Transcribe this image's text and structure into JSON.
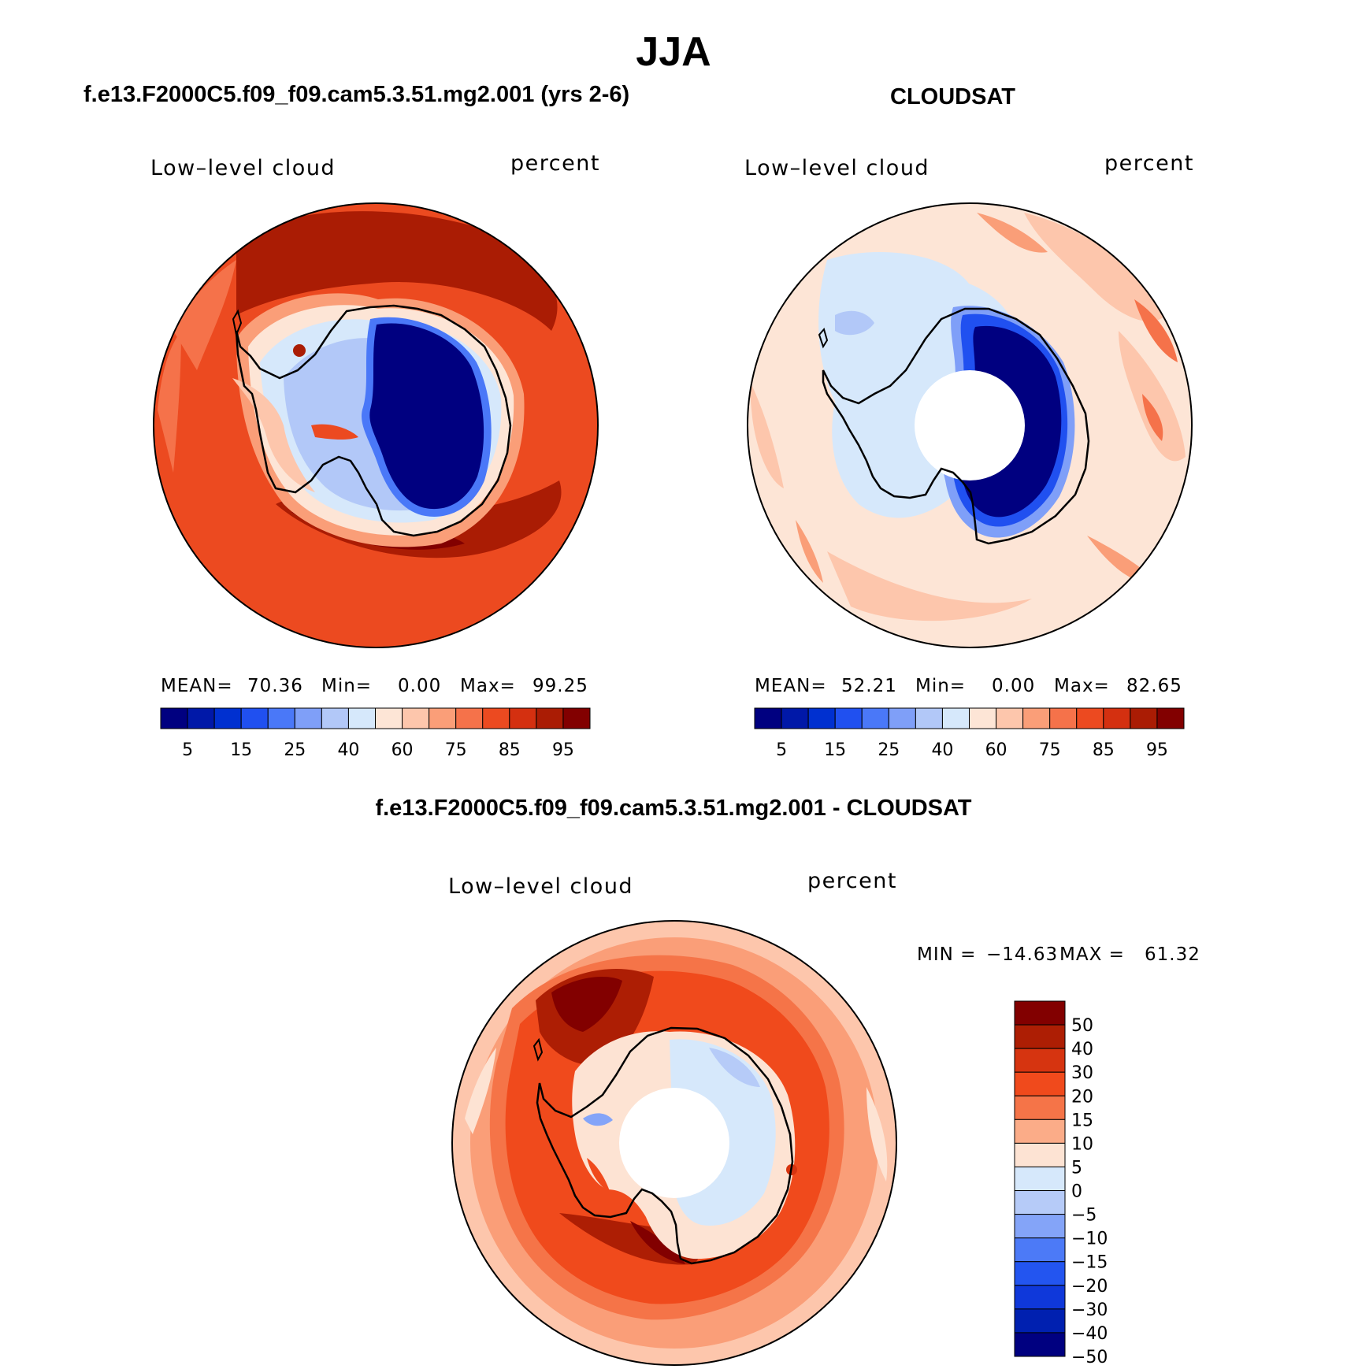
{
  "title": "JJA",
  "panels": [
    {
      "title": "f.e13.F2000C5.f09_f09.cam5.3.51.mg2.001 (yrs 2-6)",
      "variable": "Low–level cloud",
      "units": "percent",
      "stats": {
        "mean_label": "MEAN=",
        "mean": "70.36",
        "min_label": "Min=",
        "min": "0.00",
        "max_label": "Max=",
        "max": "99.25"
      }
    },
    {
      "title": "CLOUDSAT",
      "variable": "Low–level cloud",
      "units": "percent",
      "stats": {
        "mean_label": "MEAN=",
        "mean": "52.21",
        "min_label": "Min=",
        "min": "0.00",
        "max_label": "Max=",
        "max": "82.65"
      }
    }
  ],
  "abs_colorbar": {
    "colors": [
      "#000080",
      "#0018a8",
      "#0030d0",
      "#2050f0",
      "#4a78f8",
      "#7f9ff8",
      "#b2c8f8",
      "#d6e8fb",
      "#fde5d6",
      "#fdc6ac",
      "#fa9e78",
      "#f5724a",
      "#ec4a20",
      "#d43010",
      "#aa1c04",
      "#820000"
    ],
    "labels": [
      "5",
      "15",
      "25",
      "40",
      "60",
      "75",
      "85",
      "95"
    ]
  },
  "diff_panel": {
    "title": "f.e13.F2000C5.f09_f09.cam5.3.51.mg2.001 - CLOUDSAT",
    "variable": "Low–level cloud",
    "units": "percent",
    "minmax": {
      "min_label": "MIN =",
      "min": "−14.63",
      "max_label": "MAX =",
      "max": "61.32"
    },
    "colorbar": {
      "colors": [
        "#820000",
        "#ad1e04",
        "#d63410",
        "#f04a1c",
        "#f57448",
        "#fbac88",
        "#fde3d3",
        "#d6e8fb",
        "#b6cbf8",
        "#84a4f8",
        "#4c7af7",
        "#2355f0",
        "#0f38da",
        "#0020b0",
        "#000080"
      ],
      "labels": [
        "50",
        "40",
        "30",
        "20",
        "15",
        "10",
        "5",
        "0",
        "−5",
        "−10",
        "−15",
        "−20",
        "−30",
        "−40",
        "−50"
      ]
    }
  }
}
